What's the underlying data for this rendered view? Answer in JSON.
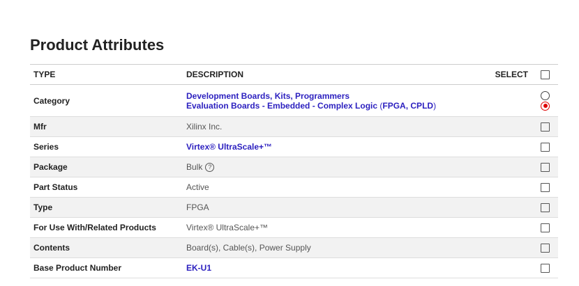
{
  "title": "Product Attributes",
  "headers": {
    "type": "TYPE",
    "description": "DESCRIPTION",
    "select": "SELECT"
  },
  "category": {
    "type": "Category",
    "links": [
      "Development Boards, Kits, Programmers",
      "Evaluation Boards - Embedded - Complex Logic"
    ],
    "paren_open": " (",
    "paren_link": "FPGA, CPLD",
    "paren_close": ")",
    "selected_option": 2
  },
  "rows": [
    {
      "type": "Mfr",
      "value": "Xilinx Inc."
    },
    {
      "type": "Series",
      "value": "Virtex® UltraScale+™",
      "link": true
    },
    {
      "type": "Package",
      "value": "Bulk",
      "help_icon": "?"
    },
    {
      "type": "Part Status",
      "value": "Active"
    },
    {
      "type": "Type",
      "value": "FPGA"
    },
    {
      "type": "For Use With/Related Products",
      "value": "Virtex® UltraScale+™"
    },
    {
      "type": "Contents",
      "value": "Board(s), Cable(s), Power Supply"
    },
    {
      "type": "Base Product Number",
      "value": "EK-U1",
      "link": true
    }
  ],
  "colors": {
    "link": "#2b1fbf",
    "radio_selected": "#dd0000"
  }
}
